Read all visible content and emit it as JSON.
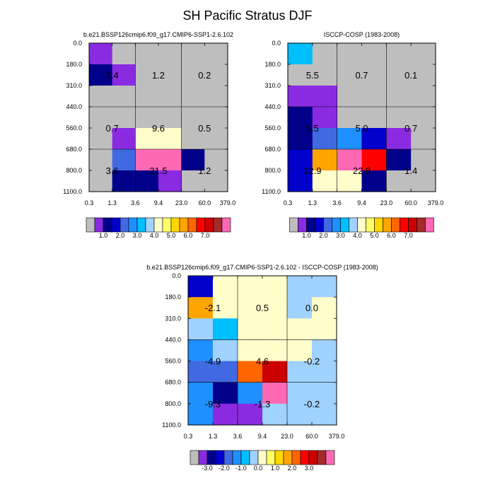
{
  "figure": {
    "title": "SH Pacific Stratus DJF"
  },
  "chart_data": [
    {
      "type": "heatmap",
      "title": "b.e21.BSSP126cmip6.f09_g17.CMIP6-SSP1-2.6.102",
      "x_ticks": [
        "0.3",
        "1.3",
        "3.6",
        "9.4",
        "23.0",
        "60.0",
        "379.0"
      ],
      "y_ticks": [
        "0.0",
        "180.0",
        "310.0",
        "440.0",
        "560.0",
        "680.0",
        "800.0",
        "1100.0"
      ],
      "cells": [
        [
          "#8a2be2",
          "#bebebe",
          "#bebebe",
          "#bebebe",
          "#bebebe",
          "#bebebe"
        ],
        [
          "#00008b",
          "#8a2be2",
          "#bebebe",
          "#bebebe",
          "#bebebe",
          "#bebebe"
        ],
        [
          "#bebebe",
          "#bebebe",
          "#bebebe",
          "#bebebe",
          "#bebebe",
          "#bebebe"
        ],
        [
          "#bebebe",
          "#bebebe",
          "#bebebe",
          "#bebebe",
          "#bebebe",
          "#bebebe"
        ],
        [
          "#bebebe",
          "#8a2be2",
          "#ffffcc",
          "#ffffcc",
          "#bebebe",
          "#bebebe"
        ],
        [
          "#bebebe",
          "#4169e1",
          "#ff69b4",
          "#ff69b4",
          "#00008b",
          "#bebebe"
        ],
        [
          "#bebebe",
          "#00008b",
          "#00008b",
          "#8a2be2",
          "#bebebe",
          "#bebebe"
        ]
      ],
      "annotations": [
        {
          "col": 0,
          "row": 1,
          "text": "3.4"
        },
        {
          "col": 1,
          "row": 1,
          "text": "1.2"
        },
        {
          "col": 2,
          "row": 1,
          "text": "0.2"
        },
        {
          "col": 0,
          "row": 4,
          "text": "0.7"
        },
        {
          "col": 1,
          "row": 4,
          "text": "9.6"
        },
        {
          "col": 2,
          "row": 4,
          "text": "0.5"
        },
        {
          "col": 0,
          "row": 6,
          "text": "3.6"
        },
        {
          "col": 1,
          "row": 6,
          "text": "21.5"
        },
        {
          "col": 2,
          "row": 6,
          "text": "1.2"
        }
      ],
      "colorbar": {
        "colors": [
          "#bebebe",
          "#8a2be2",
          "#00008b",
          "#0000cd",
          "#4169e1",
          "#1e90ff",
          "#00bfff",
          "#a0d2ff",
          "#ffffcc",
          "#ffff66",
          "#ffd700",
          "#ffa500",
          "#ff6600",
          "#ff0000",
          "#cc0000",
          "#a52a2a",
          "#ff69b4"
        ],
        "labels": [
          "1.0",
          "2.0",
          "3.0",
          "4.0",
          "5.0",
          "6.0",
          "7.0"
        ]
      }
    },
    {
      "type": "heatmap",
      "title": "ISCCP-COSP (1983-2008)",
      "x_ticks": [
        "0.3",
        "1.3",
        "3.6",
        "9.4",
        "23.0",
        "60.0",
        "379.0"
      ],
      "y_ticks": [
        "0.0",
        "180.0",
        "310.0",
        "440.0",
        "560.0",
        "680.0",
        "800.0",
        "1100.0"
      ],
      "cells": [
        [
          "#00bfff",
          "#bebebe",
          "#bebebe",
          "#bebebe",
          "#bebebe",
          "#bebebe"
        ],
        [
          "#bebebe",
          "#bebebe",
          "#bebebe",
          "#bebebe",
          "#bebebe",
          "#bebebe"
        ],
        [
          "#8a2be2",
          "#8a2be2",
          "#bebebe",
          "#bebebe",
          "#bebebe",
          "#bebebe"
        ],
        [
          "#00008b",
          "#8a2be2",
          "#bebebe",
          "#bebebe",
          "#bebebe",
          "#bebebe"
        ],
        [
          "#00008b",
          "#4169e1",
          "#1e90ff",
          "#0000cd",
          "#8a2be2",
          "#bebebe"
        ],
        [
          "#0000cd",
          "#ffa500",
          "#ff69b4",
          "#ff0000",
          "#00008b",
          "#bebebe"
        ],
        [
          "#0000cd",
          "#ffffcc",
          "#ffffcc",
          "#00008b",
          "#bebebe",
          "#bebebe"
        ]
      ],
      "annotations": [
        {
          "col": 0,
          "row": 1,
          "text": "5.5"
        },
        {
          "col": 1,
          "row": 1,
          "text": "0.7"
        },
        {
          "col": 2,
          "row": 1,
          "text": "0.1"
        },
        {
          "col": 0,
          "row": 4,
          "text": "5.5"
        },
        {
          "col": 1,
          "row": 4,
          "text": "5.0"
        },
        {
          "col": 2,
          "row": 4,
          "text": "0.7"
        },
        {
          "col": 0,
          "row": 6,
          "text": "12.9"
        },
        {
          "col": 1,
          "row": 6,
          "text": "22.8"
        },
        {
          "col": 2,
          "row": 6,
          "text": "1.4"
        }
      ],
      "colorbar": {
        "colors": [
          "#bebebe",
          "#8a2be2",
          "#00008b",
          "#0000cd",
          "#4169e1",
          "#1e90ff",
          "#00bfff",
          "#a0d2ff",
          "#ffffcc",
          "#ffff66",
          "#ffd700",
          "#ffa500",
          "#ff6600",
          "#ff0000",
          "#cc0000",
          "#a52a2a",
          "#ff69b4"
        ],
        "labels": [
          "1.0",
          "2.0",
          "3.0",
          "4.0",
          "5.0",
          "6.0",
          "7.0"
        ]
      }
    },
    {
      "type": "heatmap",
      "title": "b.e21.BSSP126cmip6.f09_g17.CMIP6-SSP1-2.6.102 - ISCCP-COSP (1983-2008)",
      "x_ticks": [
        "0.3",
        "1.3",
        "3.6",
        "9.4",
        "23.0",
        "60.0",
        "379.0"
      ],
      "y_ticks": [
        "0.0",
        "180.0",
        "310.0",
        "440.0",
        "560.0",
        "680.0",
        "800.0",
        "1100.0"
      ],
      "cells": [
        [
          "#0000cd",
          "#ffffcc",
          "#ffffcc",
          "#ffffcc",
          "#a0d2ff",
          "#a0d2ff"
        ],
        [
          "#ffa500",
          "#ffffcc",
          "#ffffcc",
          "#ffffcc",
          "#a0d2ff",
          "#ffffcc"
        ],
        [
          "#a0d2ff",
          "#00bfff",
          "#ffffcc",
          "#ffffcc",
          "#ffffcc",
          "#ffffcc"
        ],
        [
          "#1e90ff",
          "#a0d2ff",
          "#ffffcc",
          "#ffffcc",
          "#ffffcc",
          "#a0d2ff"
        ],
        [
          "#4169e1",
          "#4169e1",
          "#ff6600",
          "#cc0000",
          "#a0d2ff",
          "#a0d2ff"
        ],
        [
          "#1e90ff",
          "#00008b",
          "#1e90ff",
          "#ff69b4",
          "#a0d2ff",
          "#a0d2ff"
        ],
        [
          "#1e90ff",
          "#8a2be2",
          "#8a2be2",
          "#a0d2ff",
          "#a0d2ff",
          "#a0d2ff"
        ]
      ],
      "annotations": [
        {
          "col": 0,
          "row": 1,
          "text": "-2.1"
        },
        {
          "col": 1,
          "row": 1,
          "text": "0.5"
        },
        {
          "col": 2,
          "row": 1,
          "text": "0.0"
        },
        {
          "col": 0,
          "row": 4,
          "text": "-4.9"
        },
        {
          "col": 1,
          "row": 4,
          "text": "4.6"
        },
        {
          "col": 2,
          "row": 4,
          "text": "-0.2"
        },
        {
          "col": 0,
          "row": 6,
          "text": "-9.3"
        },
        {
          "col": 1,
          "row": 6,
          "text": "-1.3"
        },
        {
          "col": 2,
          "row": 6,
          "text": "-0.2"
        }
      ],
      "colorbar": {
        "colors": [
          "#bebebe",
          "#8a2be2",
          "#00008b",
          "#0000cd",
          "#4169e1",
          "#1e90ff",
          "#00bfff",
          "#a0d2ff",
          "#ffffcc",
          "#ffff66",
          "#ffd700",
          "#ffa500",
          "#ff6600",
          "#ff0000",
          "#cc0000",
          "#a52a2a",
          "#ff69b4"
        ],
        "labels": [
          "-3.0",
          "-2.0",
          "-1.0",
          "0.0",
          "1.0",
          "2.0",
          "3.0"
        ]
      }
    }
  ]
}
